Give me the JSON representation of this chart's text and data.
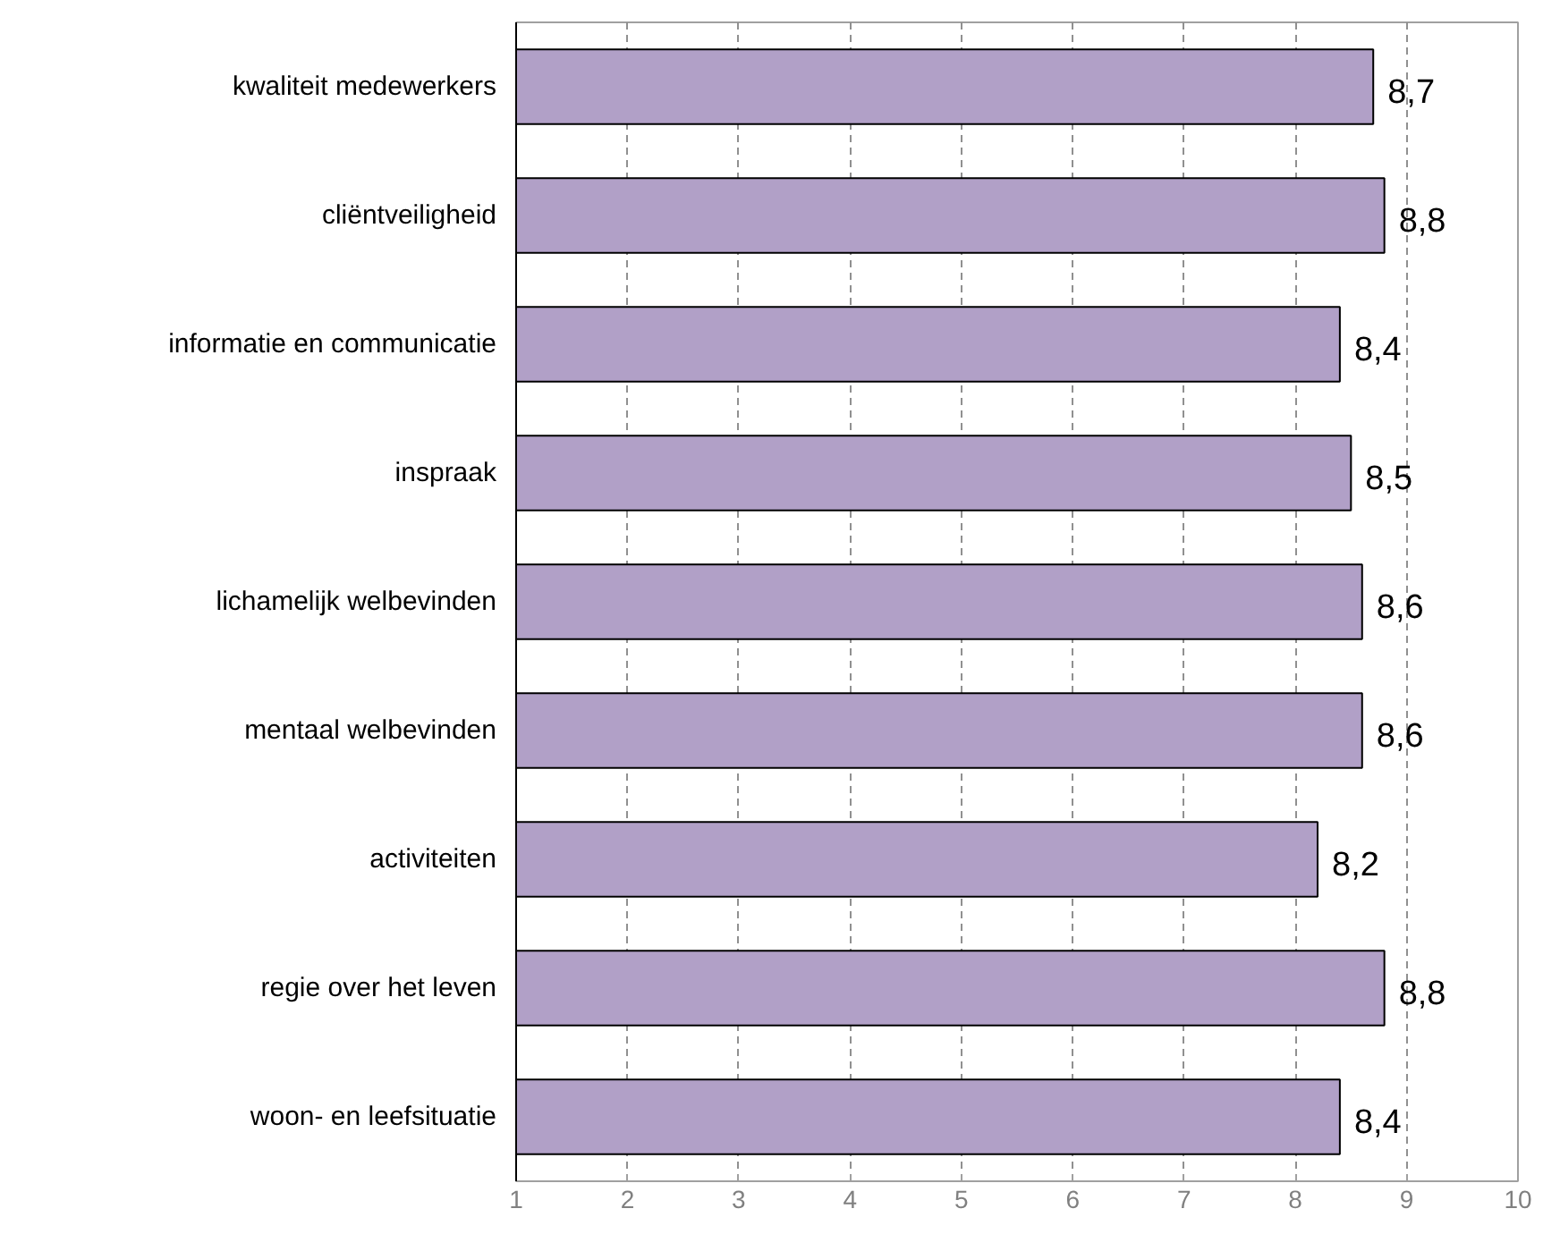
{
  "chart_data": {
    "type": "bar",
    "orientation": "horizontal",
    "categories": [
      "kwaliteit medewerkers",
      "cliëntveiligheid",
      "informatie en communicatie",
      "inspraak",
      "lichamelijk welbevinden",
      "mentaal welbevinden",
      "activiteiten",
      "regie over het leven",
      "woon- en leefsituatie"
    ],
    "values": [
      8.7,
      8.8,
      8.4,
      8.5,
      8.6,
      8.6,
      8.2,
      8.8,
      8.4
    ],
    "value_labels": [
      "8,7",
      "8,8",
      "8,4",
      "8,5",
      "8,6",
      "8,6",
      "8,2",
      "8,8",
      "8,4"
    ],
    "color": "#b1a0c7",
    "xlim": [
      1,
      10
    ],
    "xticks": [
      1,
      2,
      3,
      4,
      5,
      6,
      7,
      8,
      9,
      10
    ],
    "grid": "x"
  }
}
